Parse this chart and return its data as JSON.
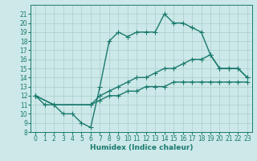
{
  "line1_x": [
    0,
    1,
    2,
    3,
    4,
    5,
    6,
    7,
    8,
    9,
    10,
    11,
    12,
    13,
    14,
    15,
    16,
    17,
    18,
    19,
    20,
    21,
    22,
    23
  ],
  "line1_y": [
    12,
    11,
    11,
    10,
    10,
    9,
    8.5,
    13,
    18,
    19,
    18.5,
    19,
    19,
    19,
    21,
    20,
    20,
    19.5,
    19,
    16.5,
    15,
    15,
    15,
    14
  ],
  "line2_x": [
    0,
    2,
    6,
    7,
    8,
    9,
    10,
    11,
    12,
    13,
    14,
    15,
    16,
    17,
    18,
    19,
    20,
    21,
    22,
    23
  ],
  "line2_y": [
    12,
    11,
    11,
    12,
    12.5,
    13,
    13.5,
    14,
    14,
    14.5,
    15,
    15,
    15.5,
    16,
    16,
    16.5,
    15,
    15,
    15,
    14
  ],
  "line3_x": [
    0,
    2,
    6,
    7,
    8,
    9,
    10,
    11,
    12,
    13,
    14,
    15,
    16,
    17,
    18,
    19,
    20,
    21,
    22,
    23
  ],
  "line3_y": [
    12,
    11,
    11,
    11.5,
    12,
    12,
    12.5,
    12.5,
    13,
    13,
    13,
    13.5,
    13.5,
    13.5,
    13.5,
    13.5,
    13.5,
    13.5,
    13.5,
    13.5
  ],
  "line_color": "#1a7a6e",
  "bg_color": "#cce8e8",
  "grid_color": "#aacece",
  "xlabel": "Humidex (Indice chaleur)",
  "ylim": [
    8,
    22
  ],
  "xlim": [
    -0.5,
    23.5
  ],
  "yticks": [
    8,
    9,
    10,
    11,
    12,
    13,
    14,
    15,
    16,
    17,
    18,
    19,
    20,
    21
  ],
  "xticks": [
    0,
    1,
    2,
    3,
    4,
    5,
    6,
    7,
    8,
    9,
    10,
    11,
    12,
    13,
    14,
    15,
    16,
    17,
    18,
    19,
    20,
    21,
    22,
    23
  ],
  "marker": "+",
  "markersize": 4,
  "linewidth": 1.0,
  "tick_fontsize": 5.5,
  "label_fontsize": 6.5
}
